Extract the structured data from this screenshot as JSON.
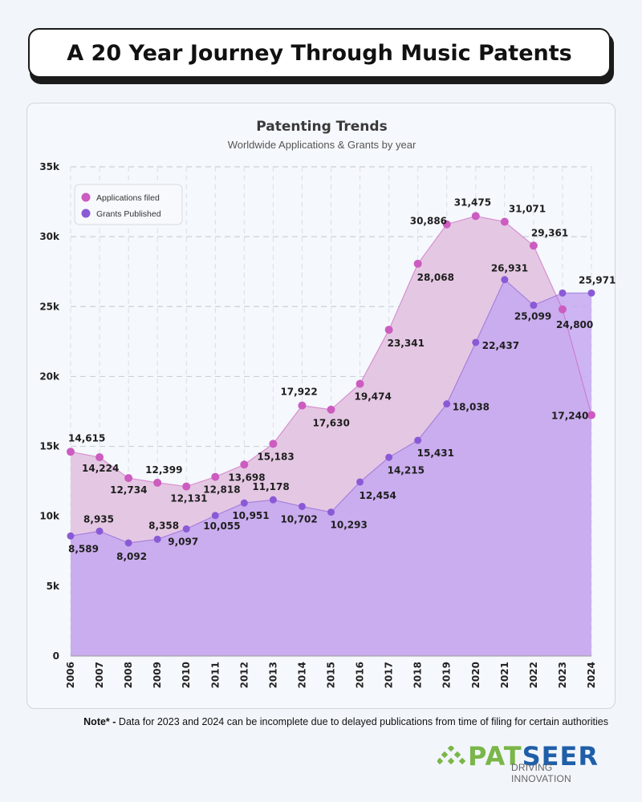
{
  "header": {
    "title": "A 20 Year Journey Through Music Patents"
  },
  "note": {
    "prefix": "Note* -",
    "text": " Data for 2023 and 2024 can be incomplete due to delayed publications from time of filing for certain authorities"
  },
  "brand": {
    "name_part1": "PAT",
    "name_part2": "SEER",
    "tagline": "DRIVING INNOVATION"
  },
  "colors": {
    "applications": "#cc5cc0",
    "grants": "#8a5ad6",
    "applications_fill": "#e3c5e2",
    "grants_fill": "#c6a8f0"
  },
  "chart_data": {
    "type": "area",
    "title": "Patenting Trends",
    "subtitle": "Worldwide Applications & Grants by year",
    "x": [
      "2006",
      "2007",
      "2008",
      "2009",
      "2010",
      "2011",
      "2012",
      "2013",
      "2014",
      "2015",
      "2016",
      "2017",
      "2018",
      "2019",
      "2020",
      "2021",
      "2022",
      "2023",
      "2024"
    ],
    "series": [
      {
        "name": "Applications filed",
        "values": [
          14615,
          14224,
          12734,
          12399,
          12131,
          12818,
          13698,
          15183,
          17922,
          17630,
          19474,
          23341,
          28068,
          30886,
          31475,
          31071,
          29361,
          24800,
          17240
        ]
      },
      {
        "name": "Grants Published",
        "values": [
          8589,
          8935,
          8092,
          8358,
          9097,
          10055,
          10951,
          11178,
          10702,
          10293,
          12454,
          14215,
          15431,
          18038,
          22437,
          26931,
          25099,
          25971,
          25971
        ]
      }
    ],
    "data_labels": {
      "applications": [
        "14,615",
        "14,224",
        "12,734",
        "12,399",
        "12,131",
        "12,818",
        "13,698",
        "15,183",
        "17,922",
        "17,630",
        "19,474",
        "23,341",
        "28,068",
        "30,886",
        "31,475",
        "31,071",
        "29,361",
        "24,800",
        "17,240"
      ],
      "grants": [
        "8,589",
        "8,935",
        "8,092",
        "8,358",
        "9,097",
        "10,055",
        "10,951",
        "11,178",
        "10,702",
        "10,293",
        "12,454",
        "14,215",
        "15,431",
        "18,038",
        "22,437",
        "26,931",
        "25,099",
        "",
        "25,971"
      ]
    },
    "y_ticks": [
      "0",
      "5k",
      "10k",
      "15k",
      "20k",
      "25k",
      "30k",
      "35k"
    ],
    "ylim": [
      0,
      35000
    ],
    "grid": true,
    "legend_position": "top-left"
  }
}
